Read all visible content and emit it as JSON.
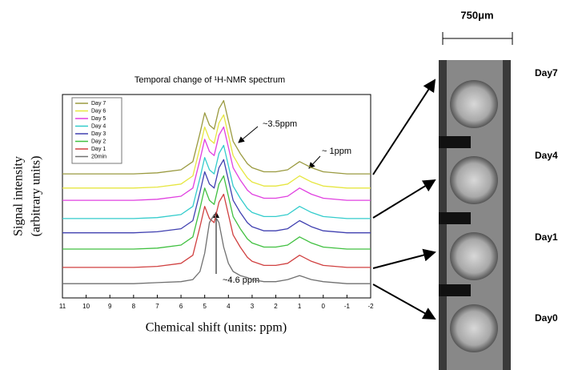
{
  "chart_data": {
    "type": "line",
    "title": "Temporal change of ¹H-NMR spectrum",
    "xlabel": "Chemical shift (units: ppm)",
    "ylabel": [
      "Signal intensity",
      "(arbitrary units)"
    ],
    "x": [
      11,
      10,
      9,
      8,
      7,
      6,
      5.5,
      5.2,
      5,
      4.8,
      4.6,
      4.4,
      4.2,
      4,
      3.8,
      3.5,
      3.2,
      3,
      2.5,
      2,
      1.5,
      1,
      0.5,
      0,
      -1,
      -2
    ],
    "xlim": [
      11,
      -2
    ],
    "xticks": [
      11,
      10,
      9,
      8,
      7,
      6,
      5,
      4,
      3,
      2,
      1,
      0,
      -1,
      -2
    ],
    "ylim": [
      0,
      100
    ],
    "legend": "top-left",
    "series": [
      {
        "name": "Day 7",
        "color": "#9a9a40",
        "values": [
          61,
          61,
          61,
          61,
          61.5,
          63,
          67,
          81,
          91,
          85,
          83,
          93,
          97,
          87,
          77,
          71,
          66,
          64,
          62,
          62,
          63,
          67,
          64,
          62,
          61,
          61
        ]
      },
      {
        "name": "Day 6",
        "color": "#e6e640",
        "values": [
          54,
          54,
          54,
          54,
          54.5,
          56,
          60,
          74,
          84,
          78,
          76,
          86,
          90,
          80,
          70,
          64,
          59,
          57,
          55,
          55,
          56,
          60,
          57,
          55,
          54,
          54
        ]
      },
      {
        "name": "Day 5",
        "color": "#e040e0",
        "values": [
          48,
          48,
          48,
          48,
          48.5,
          50,
          54,
          68,
          78,
          72,
          70,
          80,
          84,
          74,
          64,
          58,
          53,
          51,
          49,
          49,
          50,
          54,
          51,
          49,
          48,
          48
        ]
      },
      {
        "name": "Day 4",
        "color": "#33cccc",
        "values": [
          39,
          39,
          39,
          39,
          39.5,
          41,
          45,
          59,
          69,
          63,
          61,
          71,
          75,
          65,
          55,
          49,
          44,
          42,
          40,
          40,
          41,
          45,
          42,
          40,
          39,
          39
        ]
      },
      {
        "name": "Day 3",
        "color": "#4040b0",
        "values": [
          32,
          32,
          32,
          32,
          32.5,
          34,
          38,
          52,
          62,
          56,
          54,
          64,
          68,
          58,
          48,
          42,
          37,
          35,
          33,
          33,
          34,
          38,
          35,
          33,
          32,
          32
        ]
      },
      {
        "name": "Day 2",
        "color": "#40c040",
        "values": [
          24,
          24,
          24,
          24,
          24.5,
          26,
          30,
          44,
          54,
          48,
          46,
          56,
          60,
          50,
          40,
          34,
          29,
          27,
          25,
          25,
          26,
          30,
          27,
          25,
          24,
          24
        ]
      },
      {
        "name": "Day 1",
        "color": "#d04040",
        "values": [
          15,
          15,
          15,
          15,
          15.5,
          17,
          21,
          35,
          45,
          39,
          37,
          47,
          51,
          41,
          31,
          25,
          20,
          18,
          16,
          16,
          17,
          21,
          18,
          16,
          15,
          15
        ]
      },
      {
        "name": "20min",
        "color": "#707070",
        "values": [
          7,
          7,
          7,
          7,
          7.5,
          8,
          9,
          13,
          22,
          37,
          41,
          37,
          25,
          17,
          13,
          11,
          10,
          9,
          8,
          8,
          9,
          11,
          9,
          8,
          7,
          7
        ]
      }
    ],
    "annotations": [
      "~3.5ppm",
      "~ 1ppm",
      "~4.6 ppm"
    ]
  },
  "figure_panel": {
    "scale_bar": "750μm",
    "labels": [
      "Day7",
      "Day4",
      "Day1",
      "Day0"
    ]
  }
}
